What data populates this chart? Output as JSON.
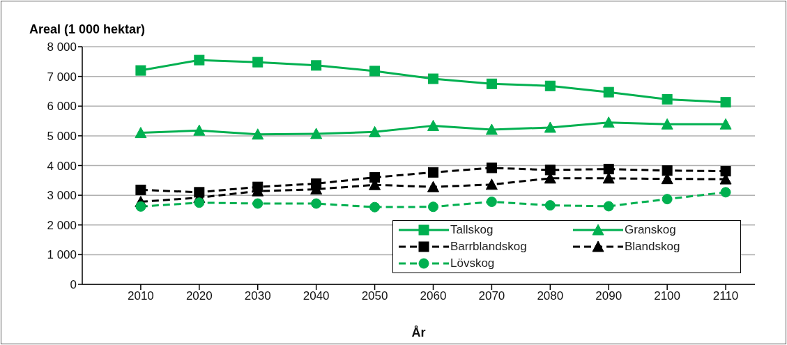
{
  "chart_data": {
    "type": "line",
    "ylabel": "Areal (1 000 hektar)",
    "xlabel": "År",
    "x": [
      2010,
      2020,
      2030,
      2040,
      2050,
      2060,
      2070,
      2080,
      2090,
      2100,
      2110
    ],
    "xlim": [
      2000,
      2115
    ],
    "xticks": [
      2010,
      2020,
      2030,
      2040,
      2050,
      2060,
      2070,
      2080,
      2090,
      2100,
      2110
    ],
    "ylim": [
      0,
      8000
    ],
    "yticks": [
      0,
      {
        "value": 1000,
        "label": "1 000"
      },
      {
        "value": 2000,
        "label": "2 000"
      },
      {
        "value": 3000,
        "label": "3 000"
      },
      {
        "value": 4000,
        "label": "4 000"
      },
      {
        "value": 5000,
        "label": "5 000"
      },
      {
        "value": 6000,
        "label": "6 000"
      },
      {
        "value": 7000,
        "label": "7 000"
      },
      {
        "value": 8000,
        "label": "8 000"
      }
    ],
    "grid": "y",
    "legend": "bottom right",
    "series": [
      {
        "name": "Tallskog",
        "color": "#00b050",
        "marker": "square",
        "line_style": "solid",
        "values": [
          7200,
          7550,
          7480,
          7370,
          7180,
          6920,
          6750,
          6680,
          6470,
          6230,
          6130
        ]
      },
      {
        "name": "Granskog",
        "color": "#00b050",
        "marker": "triangle",
        "line_style": "solid",
        "values": [
          5100,
          5180,
          5050,
          5070,
          5130,
          5340,
          5210,
          5280,
          5450,
          5390,
          5390
        ]
      },
      {
        "name": "Barrblandskog",
        "color": "#000000",
        "marker": "square",
        "line_style": "dashed",
        "values": [
          3180,
          3100,
          3280,
          3390,
          3600,
          3770,
          3920,
          3850,
          3880,
          3830,
          3810
        ]
      },
      {
        "name": "Blandskog",
        "color": "#000000",
        "marker": "triangle",
        "line_style": "dashed",
        "values": [
          2780,
          2920,
          3140,
          3200,
          3350,
          3280,
          3360,
          3570,
          3570,
          3550,
          3540
        ]
      },
      {
        "name": "Lövskog",
        "color": "#00b050",
        "marker": "circle",
        "line_style": "dashed",
        "values": [
          2620,
          2750,
          2720,
          2720,
          2600,
          2610,
          2780,
          2660,
          2630,
          2870,
          3100
        ]
      }
    ]
  }
}
